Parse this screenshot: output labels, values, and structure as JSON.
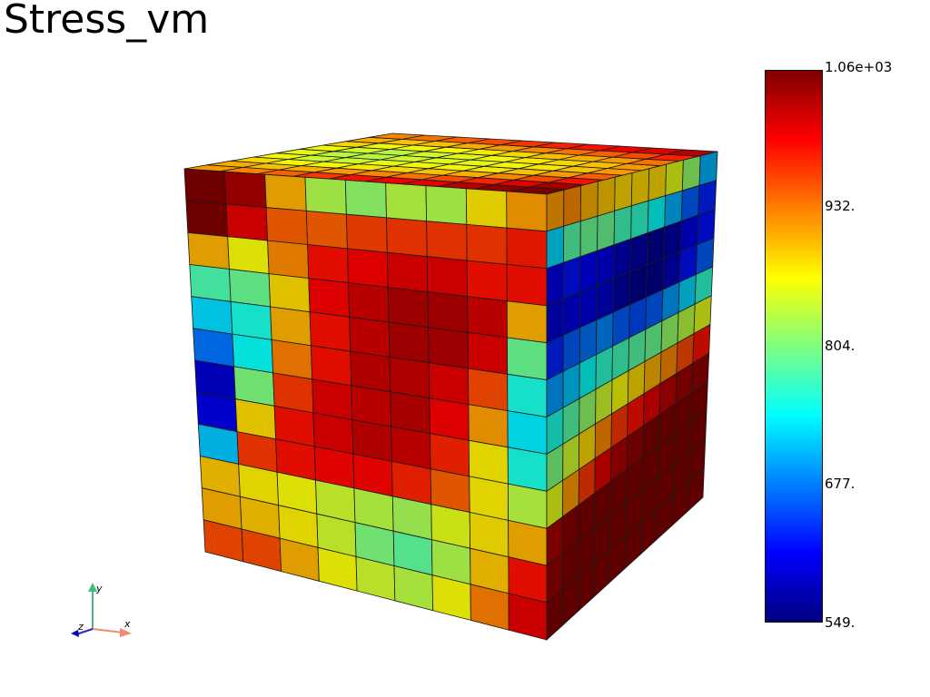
{
  "title": "Stress_vm",
  "colorbar": {
    "max_label": "1.06e+03",
    "ticks": [
      "932.",
      "804.",
      "677."
    ],
    "min_label": "549.",
    "min_value": 549,
    "max_value": 1060,
    "colormap": [
      "#00007f",
      "#0000ff",
      "#007fff",
      "#00ffff",
      "#7fff7f",
      "#ffff00",
      "#ff7f00",
      "#ff0000",
      "#7f0000"
    ]
  },
  "axes_triad": {
    "x": "x",
    "y": "y",
    "z": "z"
  },
  "mesh": {
    "front_face": [
      [
        1.0,
        0.96,
        0.7,
        0.55,
        0.52,
        0.56,
        0.55,
        0.65,
        0.72
      ],
      [
        1.0,
        0.9,
        0.78,
        0.78,
        0.81,
        0.82,
        0.82,
        0.82,
        0.85
      ],
      [
        0.7,
        0.62,
        0.74,
        0.86,
        0.88,
        0.9,
        0.9,
        0.86,
        0.86
      ],
      [
        0.45,
        0.48,
        0.66,
        0.88,
        0.92,
        0.95,
        0.95,
        0.92,
        0.7
      ],
      [
        0.34,
        0.4,
        0.7,
        0.86,
        0.92,
        0.95,
        0.95,
        0.9,
        0.48
      ],
      [
        0.24,
        0.38,
        0.75,
        0.86,
        0.93,
        0.93,
        0.9,
        0.8,
        0.4
      ],
      [
        0.08,
        0.5,
        0.82,
        0.9,
        0.92,
        0.94,
        0.88,
        0.72,
        0.36
      ],
      [
        0.1,
        0.66,
        0.86,
        0.9,
        0.93,
        0.92,
        0.84,
        0.64,
        0.4
      ],
      [
        0.32,
        0.82,
        0.86,
        0.87,
        0.87,
        0.84,
        0.78,
        0.64,
        0.56
      ],
      [
        0.68,
        0.64,
        0.62,
        0.58,
        0.56,
        0.54,
        0.6,
        0.65,
        0.7
      ],
      [
        0.7,
        0.68,
        0.64,
        0.58,
        0.5,
        0.47,
        0.55,
        0.68,
        0.86
      ],
      [
        0.8,
        0.8,
        0.7,
        0.62,
        0.58,
        0.56,
        0.62,
        0.75,
        0.9
      ]
    ],
    "side_face": [
      [
        0.72,
        0.74,
        0.7,
        0.68,
        0.66,
        0.66,
        0.66,
        0.6,
        0.52,
        0.3
      ],
      [
        0.34,
        0.46,
        0.48,
        0.48,
        0.44,
        0.42,
        0.38,
        0.3,
        0.22,
        0.16
      ],
      [
        0.1,
        0.14,
        0.12,
        0.1,
        0.06,
        0.04,
        0.02,
        0.04,
        0.1,
        0.14
      ],
      [
        0.08,
        0.1,
        0.1,
        0.08,
        0.04,
        0.02,
        0.02,
        0.06,
        0.14,
        0.22
      ],
      [
        0.16,
        0.22,
        0.24,
        0.26,
        0.22,
        0.2,
        0.22,
        0.28,
        0.34,
        0.42
      ],
      [
        0.28,
        0.32,
        0.38,
        0.42,
        0.44,
        0.46,
        0.48,
        0.52,
        0.56,
        0.6
      ],
      [
        0.4,
        0.46,
        0.52,
        0.58,
        0.62,
        0.66,
        0.7,
        0.74,
        0.8,
        0.86
      ],
      [
        0.5,
        0.58,
        0.66,
        0.74,
        0.82,
        0.86,
        0.9,
        0.94,
        0.97,
        0.98
      ],
      [
        0.6,
        0.72,
        0.82,
        0.9,
        0.95,
        0.98,
        1.0,
        1.0,
        1.0,
        1.0
      ],
      [
        0.96,
        0.99,
        1.0,
        1.0,
        1.0,
        1.0,
        1.0,
        1.0,
        1.0,
        1.0
      ],
      [
        0.98,
        1.0,
        1.0,
        1.0,
        1.0,
        1.0,
        1.0,
        1.0,
        1.0,
        1.0
      ],
      [
        1.0,
        1.0,
        1.0,
        1.0,
        1.0,
        1.0,
        1.0,
        1.0,
        1.0,
        1.0
      ]
    ],
    "top_face": [
      [
        0.72,
        0.7,
        0.66,
        0.62,
        0.6,
        0.62,
        0.66,
        0.7,
        0.74
      ],
      [
        0.74,
        0.68,
        0.62,
        0.58,
        0.56,
        0.58,
        0.62,
        0.68,
        0.76
      ],
      [
        0.78,
        0.7,
        0.62,
        0.58,
        0.56,
        0.56,
        0.62,
        0.68,
        0.78
      ],
      [
        0.82,
        0.72,
        0.64,
        0.6,
        0.58,
        0.58,
        0.62,
        0.7,
        0.8
      ],
      [
        0.86,
        0.74,
        0.66,
        0.62,
        0.6,
        0.6,
        0.64,
        0.72,
        0.82
      ],
      [
        0.88,
        0.76,
        0.68,
        0.62,
        0.6,
        0.62,
        0.66,
        0.74,
        0.84
      ],
      [
        0.9,
        0.8,
        0.7,
        0.64,
        0.62,
        0.64,
        0.68,
        0.76,
        0.86
      ],
      [
        0.94,
        0.84,
        0.74,
        0.68,
        0.64,
        0.66,
        0.7,
        0.78,
        0.88
      ],
      [
        0.98,
        0.9,
        0.8,
        0.72,
        0.68,
        0.68,
        0.72,
        0.8,
        0.9
      ],
      [
        1.0,
        0.96,
        0.86,
        0.78,
        0.72,
        0.72,
        0.76,
        0.84,
        0.94
      ]
    ]
  }
}
